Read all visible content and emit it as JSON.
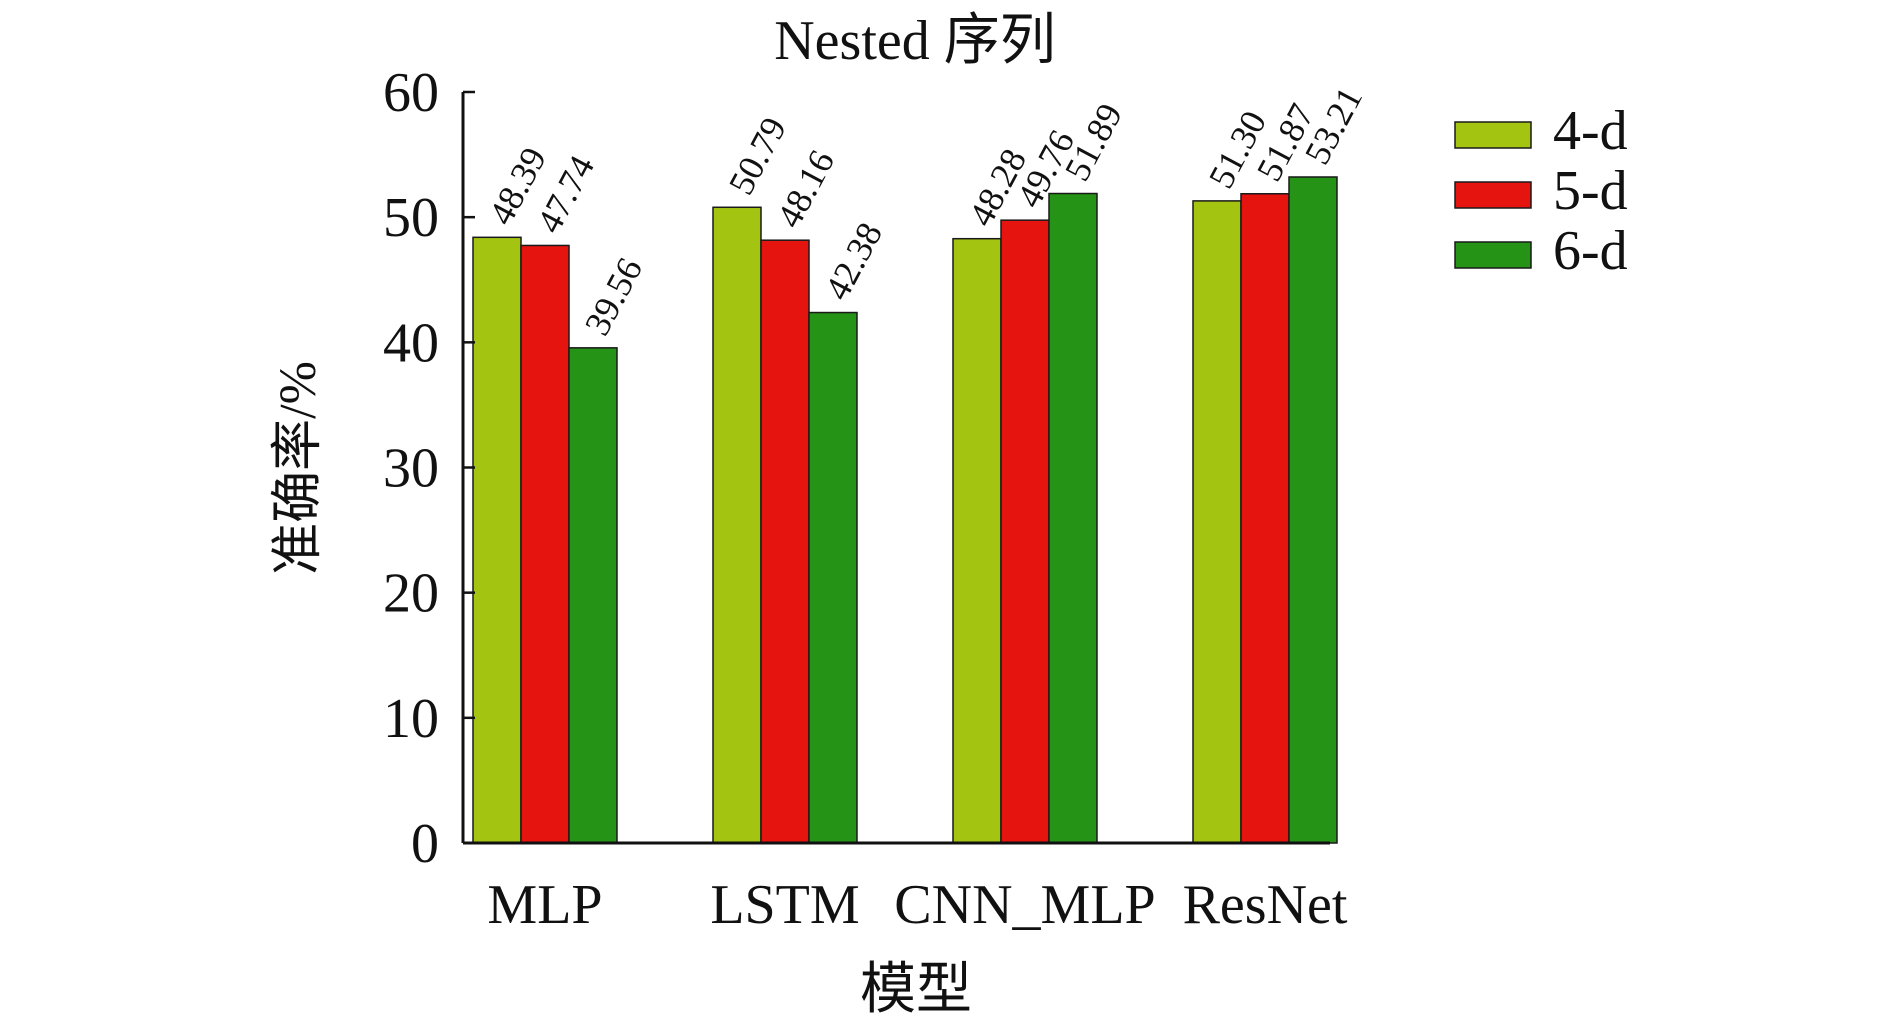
{
  "chart_data": {
    "type": "bar",
    "title": "Nested 序列",
    "xlabel": "模型",
    "ylabel": "准确率/%",
    "categories": [
      "MLP",
      "LSTM",
      "CNN_MLP",
      "ResNet"
    ],
    "series": [
      {
        "name": "4-d",
        "color": "#a4c412",
        "values": [
          48.39,
          50.79,
          48.28,
          51.3
        ]
      },
      {
        "name": "5-d",
        "color": "#e5140f",
        "values": [
          47.74,
          48.16,
          49.76,
          51.87
        ]
      },
      {
        "name": "6-d",
        "color": "#259315",
        "values": [
          39.56,
          42.38,
          51.89,
          53.21
        ]
      }
    ],
    "value_labels": [
      [
        "48.39",
        "50.79",
        "48.28",
        "51.30"
      ],
      [
        "47.74",
        "48.16",
        "49.76",
        "51.87"
      ],
      [
        "39.56",
        "42.38",
        "51.89",
        "53.21"
      ]
    ],
    "ylim": [
      0,
      60
    ],
    "yticks": [
      0,
      10,
      20,
      30,
      40,
      50,
      60
    ],
    "grid": false,
    "legend_position": "top-right"
  }
}
